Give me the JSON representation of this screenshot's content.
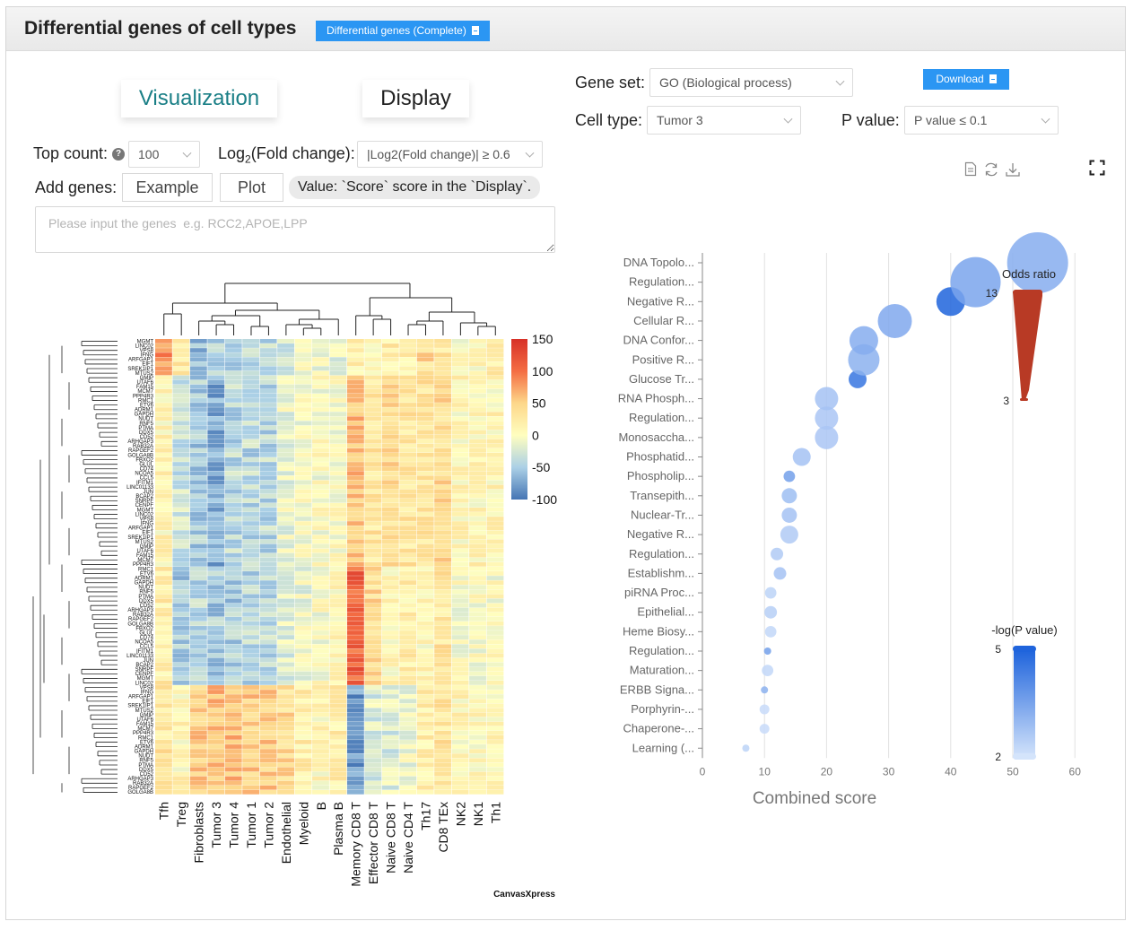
{
  "header": {
    "title": "Differential genes of cell types",
    "complete_button": "Differential genes (Complete)"
  },
  "tabs": [
    {
      "label": "Visualization",
      "active": true
    },
    {
      "label": "Display",
      "active": false
    }
  ],
  "controls": {
    "top_count_label": "Top count:",
    "top_count_value": "100",
    "fold_label_pre": "Log",
    "fold_label_sub": "2",
    "fold_label_post": "(Fold change):",
    "fold_value": "|Log2(Fold change)| ≥ 0.6",
    "add_genes_label": "Add genes:",
    "example_button": "Example",
    "plot_button": "Plot",
    "value_note": "Value: `Score` score in the `Display`.",
    "genes_placeholder": "Please input the genes  e.g. RCC2,APOE,LPP"
  },
  "enrich_controls": {
    "gene_set_label": "Gene set:",
    "gene_set_value": "GO (Biological process)",
    "download_button": "Download",
    "cell_type_label": "Cell type:",
    "cell_type_value": "Tumor 3",
    "pvalue_label": "P value:",
    "pvalue_value": "P value ≤ 0.1"
  },
  "watermark": "CanvasXpress",
  "colors": {
    "accent_blue": "#2b96f3",
    "tab_active_text": "#1a7f86",
    "heat_high": "#d73027",
    "heat_mid": "#fffebf",
    "heat_low": "#4575b4",
    "bubble_high": "#1f64dc",
    "bubble_low": "#d4e4fb",
    "odds_bar": "#b83a25"
  },
  "chart_data": [
    {
      "type": "heatmap",
      "title": "",
      "columns": [
        "Tfh",
        "Treg",
        "Fibroblasts",
        "Tumor 3",
        "Tumor 4",
        "Tumor 1",
        "Tumor 2",
        "Endothelial",
        "Myeloid",
        "B",
        "Plasma B",
        "Memory CD8 T",
        "Effector CD8 T",
        "Naive CD8 T",
        "Naive CD4 T",
        "Th17",
        "CD8 TEx",
        "NK2",
        "NK1",
        "Th1"
      ],
      "row_count": 100,
      "legend_ticks": [
        150,
        100,
        50,
        0,
        -50,
        -100
      ],
      "color_range": [
        -100,
        150
      ],
      "row_labels_partial": [
        "MGMT",
        "LINC02",
        "VPS8",
        "IFNG",
        "ARFGAP1",
        "EIF1",
        "SREK1IP1",
        "MTUS2",
        "GMIP",
        "UTAF6",
        "FAM15",
        "MCM7",
        "PPP4R3",
        "RMC1",
        "ETV6",
        "ADRM1",
        "GAPDH",
        "NUDT",
        "RNF5",
        "PTMA",
        "DDX5",
        "CD52",
        "ARHGAP3",
        "RAB32A",
        "RAPGEF2",
        "GOLGA8B",
        "FBXO2",
        "GLUL",
        "CD74",
        "NCOA5",
        "CCL5",
        "IFITM1",
        "LINC01133",
        "JUN",
        "BCAP2",
        "SNRPF",
        "CENPF"
      ],
      "row_clusters": [
        {
          "span": [
            0,
            8
          ],
          "profile": [
            80,
            30,
            -60,
            -50,
            -40,
            -40,
            -40,
            -30,
            0,
            -10,
            -10,
            20,
            10,
            20,
            20,
            40,
            30,
            0,
            10,
            20
          ]
        },
        {
          "span": [
            8,
            50
          ],
          "profile": [
            10,
            -30,
            -50,
            -70,
            -40,
            -40,
            -40,
            -10,
            -5,
            0,
            0,
            60,
            30,
            40,
            30,
            30,
            40,
            10,
            10,
            10
          ]
        },
        {
          "span": [
            50,
            76
          ],
          "profile": [
            20,
            -50,
            -40,
            -50,
            -50,
            -40,
            -40,
            -20,
            -10,
            0,
            10,
            110,
            40,
            10,
            20,
            10,
            30,
            0,
            0,
            0
          ]
        },
        {
          "span": [
            76,
            100
          ],
          "profile": [
            30,
            10,
            50,
            60,
            60,
            50,
            50,
            40,
            20,
            10,
            20,
            -80,
            -20,
            -20,
            -10,
            20,
            30,
            10,
            10,
            10
          ]
        }
      ]
    },
    {
      "type": "scatter",
      "subtype": "bubble",
      "xlabel": "Combined score",
      "xlim": [
        0,
        60
      ],
      "xticks": [
        0,
        10,
        20,
        30,
        40,
        50,
        60
      ],
      "grid": true,
      "legends": {
        "size": {
          "title": "Odds ratio",
          "max": 13,
          "min": 3
        },
        "color": {
          "title": "-log(P value)",
          "max": 5,
          "min": 2
        }
      },
      "points": [
        {
          "term": "DNA Topolo...",
          "x": 54,
          "odds": 13,
          "nlogp": 3.3
        },
        {
          "term": "Regulation...",
          "x": 44,
          "odds": 11,
          "nlogp": 3.5
        },
        {
          "term": "Negative R...",
          "x": 40,
          "odds": 7,
          "nlogp": 5
        },
        {
          "term": "Cellular R...",
          "x": 31,
          "odds": 8,
          "nlogp": 3.4
        },
        {
          "term": "DNA Confor...",
          "x": 26,
          "odds": 7,
          "nlogp": 3.3
        },
        {
          "term": "Positive R...",
          "x": 26,
          "odds": 7.5,
          "nlogp": 3.2
        },
        {
          "term": "Glucose Tr...",
          "x": 25,
          "odds": 5,
          "nlogp": 4.6
        },
        {
          "term": "RNA Phosph...",
          "x": 20,
          "odds": 6,
          "nlogp": 2.8
        },
        {
          "term": "Regulation...",
          "x": 20,
          "odds": 6,
          "nlogp": 2.7
        },
        {
          "term": "Monosaccha...",
          "x": 20,
          "odds": 6,
          "nlogp": 2.7
        },
        {
          "term": "Phosphatid...",
          "x": 16,
          "odds": 5,
          "nlogp": 2.8
        },
        {
          "term": "Phospholip...",
          "x": 14,
          "odds": 3.8,
          "nlogp": 3.6
        },
        {
          "term": "Transepith...",
          "x": 14,
          "odds": 4.5,
          "nlogp": 2.9
        },
        {
          "term": "Nuclear-Tr...",
          "x": 14,
          "odds": 4.5,
          "nlogp": 2.8
        },
        {
          "term": "Negative R...",
          "x": 14,
          "odds": 5,
          "nlogp": 2.6
        },
        {
          "term": "Regulation...",
          "x": 12,
          "odds": 4,
          "nlogp": 2.6
        },
        {
          "term": "Establishm...",
          "x": 12.5,
          "odds": 4,
          "nlogp": 2.8
        },
        {
          "term": "piRNA Proc...",
          "x": 11,
          "odds": 3.8,
          "nlogp": 2.4
        },
        {
          "term": "Epithelial...",
          "x": 11,
          "odds": 4,
          "nlogp": 2.5
        },
        {
          "term": "Heme Biosy...",
          "x": 11,
          "odds": 3.8,
          "nlogp": 2.3
        },
        {
          "term": "Regulation...",
          "x": 10.5,
          "odds": 3,
          "nlogp": 3.6
        },
        {
          "term": "Maturation...",
          "x": 10.5,
          "odds": 3.8,
          "nlogp": 2.3
        },
        {
          "term": "ERBB Signa...",
          "x": 10,
          "odds": 3,
          "nlogp": 3.2
        },
        {
          "term": "Porphyrin-...",
          "x": 10,
          "odds": 3.5,
          "nlogp": 2.2
        },
        {
          "term": "Chaperone-...",
          "x": 10,
          "odds": 3.5,
          "nlogp": 2.2
        },
        {
          "term": "Learning (...",
          "x": 7,
          "odds": 3,
          "nlogp": 2.4
        }
      ]
    }
  ]
}
